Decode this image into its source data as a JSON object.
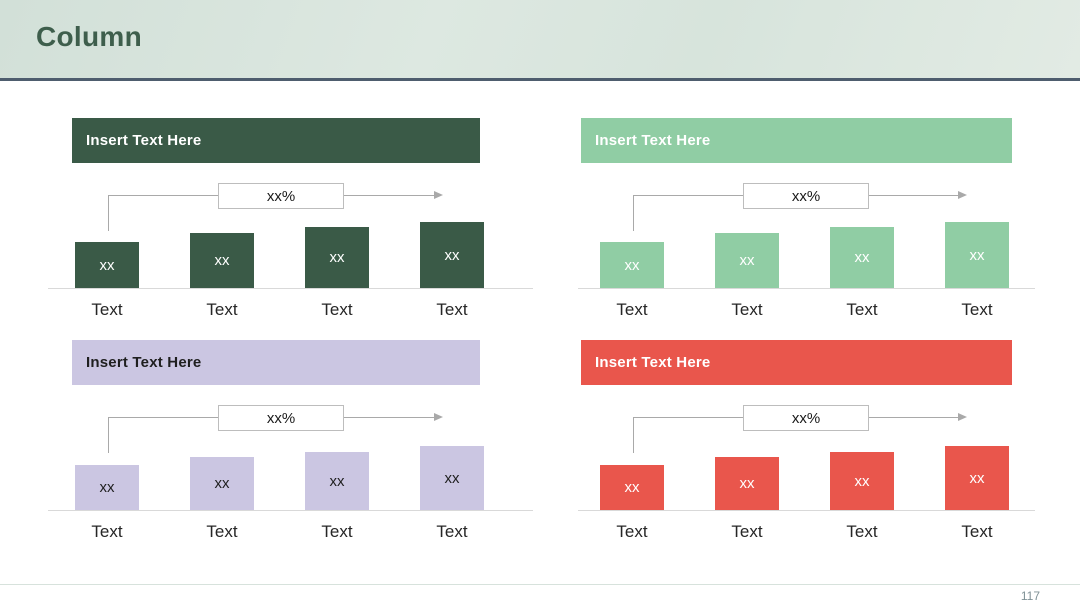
{
  "slide": {
    "title": "Column",
    "title_color": "#3e5e4c",
    "banner_border_color": "#4e5d6e",
    "page_number": "117"
  },
  "chart_data": [
    {
      "type": "bar",
      "position": "top-left",
      "title": "Insert Text Here",
      "categories": [
        "Text",
        "Text",
        "Text",
        "Text"
      ],
      "values": [
        46,
        55,
        61,
        66
      ],
      "bar_value_label": "xx",
      "annotation_label": "xx%",
      "accent_color": "#3a5a47",
      "title_text_color": "#ffffff",
      "bar_label_color": "#ffffff"
    },
    {
      "type": "bar",
      "position": "top-right",
      "title": "Insert Text Here",
      "categories": [
        "Text",
        "Text",
        "Text",
        "Text"
      ],
      "values": [
        46,
        55,
        61,
        66
      ],
      "bar_value_label": "xx",
      "annotation_label": "xx%",
      "accent_color": "#90cda4",
      "title_text_color": "#ffffff",
      "bar_label_color": "#ffffff"
    },
    {
      "type": "bar",
      "position": "bottom-left",
      "title": "Insert Text Here",
      "categories": [
        "Text",
        "Text",
        "Text",
        "Text"
      ],
      "values": [
        45,
        53,
        58,
        64
      ],
      "bar_value_label": "xx",
      "annotation_label": "xx%",
      "accent_color": "#cbc6e2",
      "title_text_color": "#1f1f1f",
      "bar_label_color": "#1f1f1f"
    },
    {
      "type": "bar",
      "position": "bottom-right",
      "title": "Insert Text Here",
      "categories": [
        "Text",
        "Text",
        "Text",
        "Text"
      ],
      "values": [
        45,
        53,
        58,
        64
      ],
      "bar_value_label": "xx",
      "annotation_label": "xx%",
      "accent_color": "#e9564c",
      "title_text_color": "#ffffff",
      "bar_label_color": "#ffffff"
    }
  ]
}
